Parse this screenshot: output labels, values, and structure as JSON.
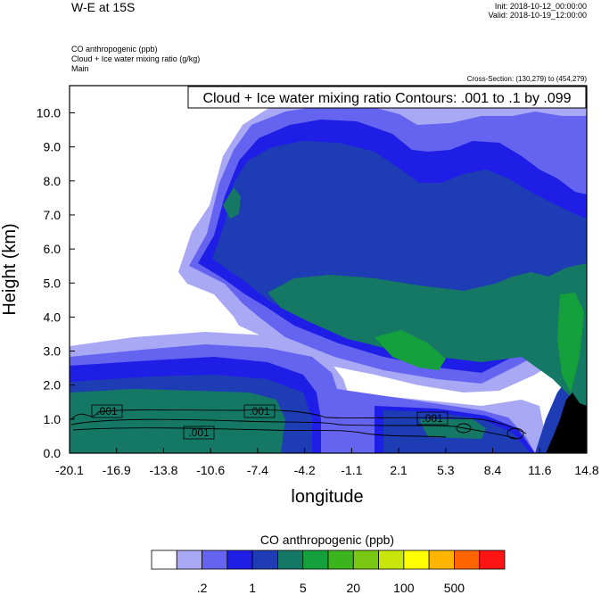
{
  "header": {
    "title": "W-E at 15S",
    "init": "Init: 2018-10-12_00:00:00",
    "valid": "Valid: 2018-10-19_12:00:00",
    "field_lines": [
      "CO anthropogenic   (ppb)",
      "Cloud + Ice water mixing ratio   (g/kg)",
      "Main"
    ],
    "cross_section": "Cross-Section: (130,279) to (454,279)"
  },
  "chart_data": {
    "type": "heatmap",
    "title": "W-E at 15S",
    "xlabel": "longitude",
    "ylabel": "Height (km)",
    "x_ticks": [
      "-20.1",
      "-16.9",
      "-13.8",
      "-10.6",
      "-7.4",
      "-4.2",
      "-1.1",
      "2.1",
      "5.3",
      "8.4",
      "11.6",
      "14.8"
    ],
    "xlim": [
      -20.1,
      14.8
    ],
    "y_ticks": [
      "0.0",
      "1.0",
      "2.0",
      "3.0",
      "4.0",
      "5.0",
      "6.0",
      "7.0",
      "8.0",
      "9.0",
      "10.0"
    ],
    "ylim": [
      0,
      10.8
    ],
    "contour_label": "Cloud + Ice water mixing ratio Contours: .001 to .1 by .099",
    "contour_values": [
      ".001",
      ".001",
      ".001",
      ".001"
    ],
    "colorbar": {
      "title": "CO anthropogenic  (ppb)",
      "colors": [
        "#ffffff",
        "#a8a8f5",
        "#6464f0",
        "#1e1ee6",
        "#1e3cb4",
        "#147864",
        "#14a03c",
        "#3cb41e",
        "#78c814",
        "#c8e60a",
        "#ffff00",
        "#ffb400",
        "#ff6400",
        "#ff1414"
      ],
      "labels": [
        ".2",
        "1",
        "5",
        "20",
        "100",
        "500"
      ]
    }
  }
}
